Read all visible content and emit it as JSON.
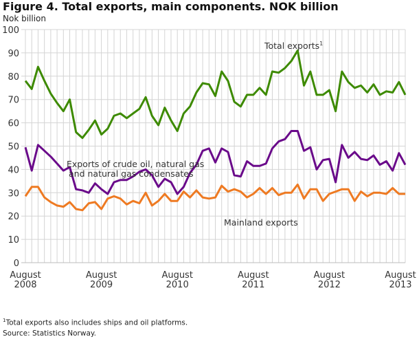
{
  "chart_data": {
    "type": "line",
    "title": "Figure 4. Total exports, main components. NOK billion",
    "ylabel": "Nok billion",
    "xlabel": "",
    "ylim": [
      0,
      100
    ],
    "yticks": [
      0,
      10,
      20,
      30,
      40,
      50,
      60,
      70,
      80,
      90,
      100
    ],
    "x_start": "2008-08",
    "x_end": "2013-08",
    "x_frequency": "monthly",
    "xtick_labels": [
      {
        "month": "August",
        "year": "2008"
      },
      {
        "month": "August",
        "year": "2009"
      },
      {
        "month": "August",
        "year": "2010"
      },
      {
        "month": "August",
        "year": "2011"
      },
      {
        "month": "August",
        "year": "2012"
      },
      {
        "month": "August",
        "year": "2013"
      }
    ],
    "grid": true,
    "series": [
      {
        "name": "Total exports",
        "label_sup": "1",
        "color": "#3d8a00",
        "values": [
          78,
          74.5,
          84,
          78,
          72.5,
          68.5,
          65,
          70,
          56,
          53.5,
          57,
          61,
          55,
          57.5,
          63,
          64,
          62,
          64,
          66,
          71,
          63,
          59,
          66.5,
          61,
          56.5,
          64,
          67,
          73,
          77,
          76.5,
          71.5,
          82,
          78,
          69,
          67,
          72,
          72,
          75,
          72,
          82,
          81.5,
          83.5,
          86.5,
          91,
          76,
          82,
          72,
          72,
          74,
          65,
          82,
          77.5,
          75,
          76,
          73,
          76.5,
          72,
          73.5,
          73,
          77.5,
          72
        ]
      },
      {
        "name": "Exports of crude oil, natural gas and natural gas condensates",
        "label_lines": [
          "Exports of crude oil, natural gas",
          "and natural gas condensates"
        ],
        "color": "#6a0a8a",
        "values": [
          49.5,
          39.5,
          50.5,
          48,
          45.5,
          42.5,
          39.5,
          41,
          31.5,
          31,
          30,
          34,
          31.5,
          29.5,
          34.5,
          35.5,
          35.5,
          37,
          39,
          40,
          37.5,
          32.5,
          36,
          34.5,
          29.5,
          32.5,
          38.5,
          42,
          48,
          49,
          43,
          49,
          47.5,
          37.5,
          37,
          43.5,
          41.5,
          41.5,
          42.5,
          49,
          52,
          53,
          56.5,
          56.5,
          48,
          49.5,
          40,
          44,
          44.5,
          34.5,
          50.5,
          45,
          47.5,
          44.5,
          44,
          46,
          42,
          43.5,
          39.5,
          47,
          42
        ]
      },
      {
        "name": "Mainland exports",
        "color": "#ee7a22",
        "values": [
          28.5,
          32.5,
          32.5,
          28,
          26,
          24.5,
          24,
          26,
          23,
          22.5,
          25.5,
          26,
          23,
          27.5,
          28.5,
          27.5,
          25,
          26.5,
          25.5,
          30,
          24.5,
          26.5,
          29.5,
          26.5,
          26.5,
          30.5,
          28,
          31,
          28,
          27.5,
          28,
          33,
          30.5,
          31.5,
          30.5,
          28,
          29.5,
          32,
          29.5,
          32,
          29,
          30,
          30,
          33.5,
          27.5,
          31.5,
          31.5,
          26.5,
          29.5,
          30.5,
          31.5,
          31.5,
          26.5,
          30.5,
          28.5,
          30,
          30,
          29.5,
          32,
          29.5,
          29.5
        ]
      }
    ],
    "footnote": "Total exports also includes ships and oil platforms.",
    "footnote_mark": "1",
    "source": "Source: Statistics Norway."
  }
}
